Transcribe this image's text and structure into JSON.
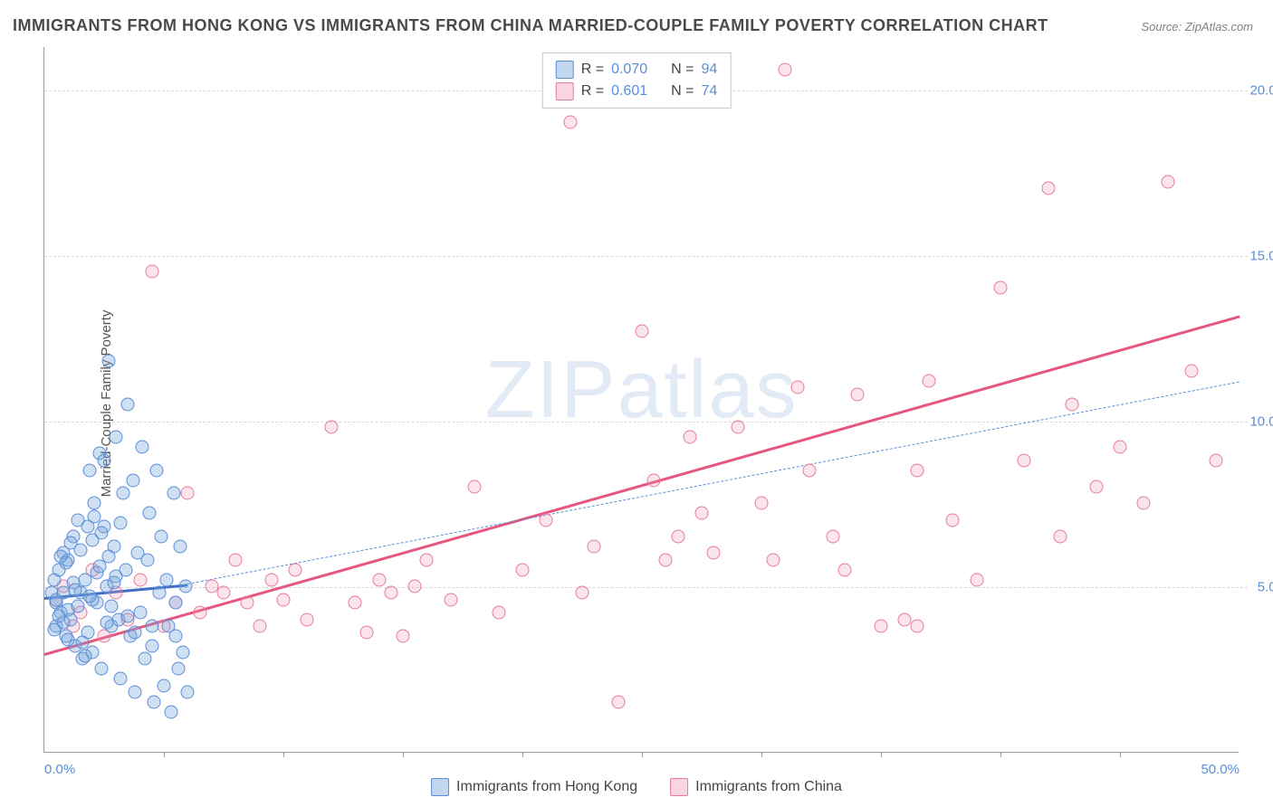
{
  "title": "IMMIGRANTS FROM HONG KONG VS IMMIGRANTS FROM CHINA MARRIED-COUPLE FAMILY POVERTY CORRELATION CHART",
  "source_label": "Source: ZipAtlas.com",
  "y_axis_label": "Married-Couple Family Poverty",
  "watermark_bold": "ZIP",
  "watermark_thin": "atlas",
  "chart": {
    "type": "scatter",
    "background_color": "#ffffff",
    "grid_color": "#d8d8d8",
    "axis_color": "#9a9a9a",
    "xlim": [
      0,
      50
    ],
    "ylim": [
      0,
      21.3
    ],
    "x_ticks": [
      0,
      25,
      50
    ],
    "x_tick_labels": [
      "0.0%",
      "",
      "50.0%"
    ],
    "x_minor_ticks": [
      5,
      10,
      15,
      20,
      25,
      30,
      35,
      40,
      45
    ],
    "y_ticks": [
      5,
      10,
      15,
      20
    ],
    "y_tick_labels": [
      "5.0%",
      "10.0%",
      "15.0%",
      "20.0%"
    ],
    "marker_radius": 7.5,
    "series": [
      {
        "name": "Immigrants from Hong Kong",
        "color_fill": "rgba(120,165,220,0.35)",
        "color_stroke": "#5a8dd6",
        "r_label": "0.070",
        "n_label": "94",
        "trend": {
          "x1": 0,
          "y1": 4.7,
          "x2": 6.0,
          "y2": 5.1,
          "solid_color": "#3f6fc4",
          "solid_width": 3
        },
        "trend_ext": {
          "x1": 6.0,
          "y1": 5.1,
          "x2": 50,
          "y2": 11.2,
          "dash_color": "#5a8dd6",
          "dash_width": 1.5
        },
        "points": [
          [
            0.3,
            4.8
          ],
          [
            0.4,
            5.2
          ],
          [
            0.5,
            4.5
          ],
          [
            0.6,
            5.5
          ],
          [
            0.5,
            3.8
          ],
          [
            0.7,
            4.2
          ],
          [
            0.8,
            6.0
          ],
          [
            0.9,
            3.5
          ],
          [
            1.0,
            5.8
          ],
          [
            1.1,
            4.0
          ],
          [
            1.2,
            6.5
          ],
          [
            1.3,
            3.2
          ],
          [
            1.4,
            7.0
          ],
          [
            1.5,
            4.8
          ],
          [
            1.6,
            2.8
          ],
          [
            1.7,
            5.2
          ],
          [
            1.8,
            6.8
          ],
          [
            1.9,
            8.5
          ],
          [
            2.0,
            3.0
          ],
          [
            2.1,
            7.5
          ],
          [
            2.2,
            4.5
          ],
          [
            2.3,
            9.0
          ],
          [
            2.4,
            2.5
          ],
          [
            2.5,
            8.8
          ],
          [
            2.6,
            5.0
          ],
          [
            2.7,
            11.8
          ],
          [
            2.8,
            3.8
          ],
          [
            2.9,
            6.2
          ],
          [
            3.0,
            9.5
          ],
          [
            3.1,
            4.0
          ],
          [
            3.2,
            2.2
          ],
          [
            3.3,
            7.8
          ],
          [
            3.4,
            5.5
          ],
          [
            3.5,
            10.5
          ],
          [
            3.6,
            3.5
          ],
          [
            3.7,
            8.2
          ],
          [
            3.8,
            1.8
          ],
          [
            3.9,
            6.0
          ],
          [
            4.0,
            4.2
          ],
          [
            4.1,
            9.2
          ],
          [
            4.2,
            2.8
          ],
          [
            4.3,
            5.8
          ],
          [
            4.4,
            7.2
          ],
          [
            4.5,
            3.2
          ],
          [
            4.6,
            1.5
          ],
          [
            4.7,
            8.5
          ],
          [
            4.8,
            4.8
          ],
          [
            4.9,
            6.5
          ],
          [
            5.0,
            2.0
          ],
          [
            5.1,
            5.2
          ],
          [
            5.2,
            3.8
          ],
          [
            5.3,
            1.2
          ],
          [
            5.4,
            7.8
          ],
          [
            5.5,
            4.5
          ],
          [
            5.6,
            2.5
          ],
          [
            5.7,
            6.2
          ],
          [
            5.8,
            3.0
          ],
          [
            5.9,
            5.0
          ],
          [
            6.0,
            1.8
          ],
          [
            1.0,
            4.3
          ],
          [
            1.2,
            5.1
          ],
          [
            0.8,
            3.9
          ],
          [
            1.5,
            6.1
          ],
          [
            2.0,
            4.6
          ],
          [
            2.2,
            5.4
          ],
          [
            0.6,
            4.1
          ],
          [
            1.8,
            3.6
          ],
          [
            2.5,
            6.8
          ],
          [
            3.0,
            5.3
          ],
          [
            1.3,
            4.9
          ],
          [
            0.9,
            5.7
          ],
          [
            2.8,
            4.4
          ],
          [
            1.6,
            3.3
          ],
          [
            2.1,
            7.1
          ],
          [
            0.7,
            5.9
          ],
          [
            1.9,
            4.7
          ],
          [
            2.6,
            3.9
          ],
          [
            1.1,
            6.3
          ],
          [
            0.5,
            4.6
          ],
          [
            2.3,
            5.6
          ],
          [
            1.7,
            2.9
          ],
          [
            3.2,
            6.9
          ],
          [
            0.4,
            3.7
          ],
          [
            2.9,
            5.1
          ],
          [
            1.4,
            4.4
          ],
          [
            2.4,
            6.6
          ],
          [
            3.5,
            4.1
          ],
          [
            1.0,
            3.4
          ],
          [
            2.7,
            5.9
          ],
          [
            0.8,
            4.8
          ],
          [
            2.0,
            6.4
          ],
          [
            3.8,
            3.6
          ],
          [
            4.5,
            3.8
          ],
          [
            5.5,
            3.5
          ]
        ]
      },
      {
        "name": "Immigrants from China",
        "color_fill": "rgba(240,150,175,0.25)",
        "color_stroke": "#e67a9a",
        "r_label": "0.601",
        "n_label": "74",
        "trend": {
          "x1": 0,
          "y1": 3.0,
          "x2": 50,
          "y2": 13.2,
          "solid_color": "#e5577f",
          "solid_width": 3
        },
        "points": [
          [
            0.5,
            4.5
          ],
          [
            0.8,
            5.0
          ],
          [
            1.2,
            3.8
          ],
          [
            1.5,
            4.2
          ],
          [
            2.0,
            5.5
          ],
          [
            2.5,
            3.5
          ],
          [
            3.0,
            4.8
          ],
          [
            3.5,
            4.0
          ],
          [
            4.0,
            5.2
          ],
          [
            4.5,
            14.5
          ],
          [
            5.0,
            3.8
          ],
          [
            5.5,
            4.5
          ],
          [
            6.0,
            7.8
          ],
          [
            6.5,
            4.2
          ],
          [
            7.0,
            5.0
          ],
          [
            7.5,
            4.8
          ],
          [
            8.0,
            5.8
          ],
          [
            8.5,
            4.5
          ],
          [
            9.0,
            3.8
          ],
          [
            9.5,
            5.2
          ],
          [
            10.0,
            4.6
          ],
          [
            10.5,
            5.5
          ],
          [
            11.0,
            4.0
          ],
          [
            12.0,
            9.8
          ],
          [
            13.0,
            4.5
          ],
          [
            13.5,
            3.6
          ],
          [
            14.0,
            5.2
          ],
          [
            14.5,
            4.8
          ],
          [
            15.0,
            3.5
          ],
          [
            15.5,
            5.0
          ],
          [
            16.0,
            5.8
          ],
          [
            17.0,
            4.6
          ],
          [
            18.0,
            8.0
          ],
          [
            19.0,
            4.2
          ],
          [
            20.0,
            5.5
          ],
          [
            21.0,
            7.0
          ],
          [
            22.0,
            19.0
          ],
          [
            22.5,
            4.8
          ],
          [
            23.0,
            6.2
          ],
          [
            24.0,
            1.5
          ],
          [
            25.0,
            12.7
          ],
          [
            25.5,
            8.2
          ],
          [
            26.0,
            5.8
          ],
          [
            26.5,
            6.5
          ],
          [
            27.0,
            9.5
          ],
          [
            27.5,
            7.2
          ],
          [
            28.0,
            6.0
          ],
          [
            29.0,
            9.8
          ],
          [
            30.0,
            7.5
          ],
          [
            30.5,
            5.8
          ],
          [
            31.0,
            20.6
          ],
          [
            31.5,
            11.0
          ],
          [
            32.0,
            8.5
          ],
          [
            33.0,
            6.5
          ],
          [
            33.5,
            5.5
          ],
          [
            34.0,
            10.8
          ],
          [
            35.0,
            3.8
          ],
          [
            36.0,
            4.0
          ],
          [
            36.5,
            8.5
          ],
          [
            37.0,
            11.2
          ],
          [
            38.0,
            7.0
          ],
          [
            39.0,
            5.2
          ],
          [
            40.0,
            14.0
          ],
          [
            41.0,
            8.8
          ],
          [
            42.0,
            17.0
          ],
          [
            42.5,
            6.5
          ],
          [
            43.0,
            10.5
          ],
          [
            44.0,
            8.0
          ],
          [
            45.0,
            9.2
          ],
          [
            46.0,
            7.5
          ],
          [
            47.0,
            17.2
          ],
          [
            48.0,
            11.5
          ],
          [
            49.0,
            8.8
          ],
          [
            36.5,
            3.8
          ]
        ]
      }
    ]
  },
  "legend_top": {
    "r_prefix": "R =",
    "n_prefix": "N ="
  },
  "legend_bottom": {
    "items": [
      "Immigrants from Hong Kong",
      "Immigrants from China"
    ]
  }
}
